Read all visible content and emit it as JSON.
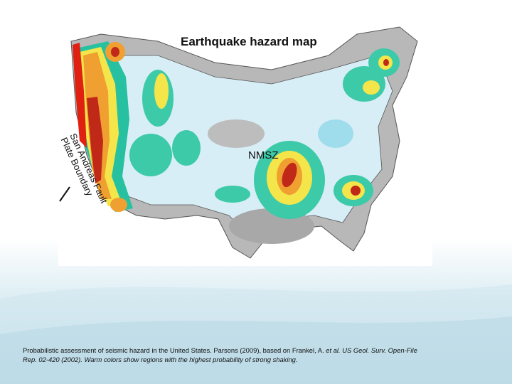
{
  "slide": {
    "map": {
      "title": "Earthquake hazard map",
      "label_nmsz": "NMSZ",
      "label_fault_line1": "San Andreas Fault",
      "label_fault_line2": "Plate Boundary"
    },
    "caption": {
      "part1": "Probabilistic assessment of seismic hazard in the United States. Parsons (2009), based on Frankel, A. ",
      "part2_italic": "et al.",
      "part3": " ",
      "part4_italic": "US Geol. Surv. Open-File",
      "part5_italic": "Rep. 02-420 (2002). Warm colors show regions with the highest probability of strong shaking."
    }
  }
}
